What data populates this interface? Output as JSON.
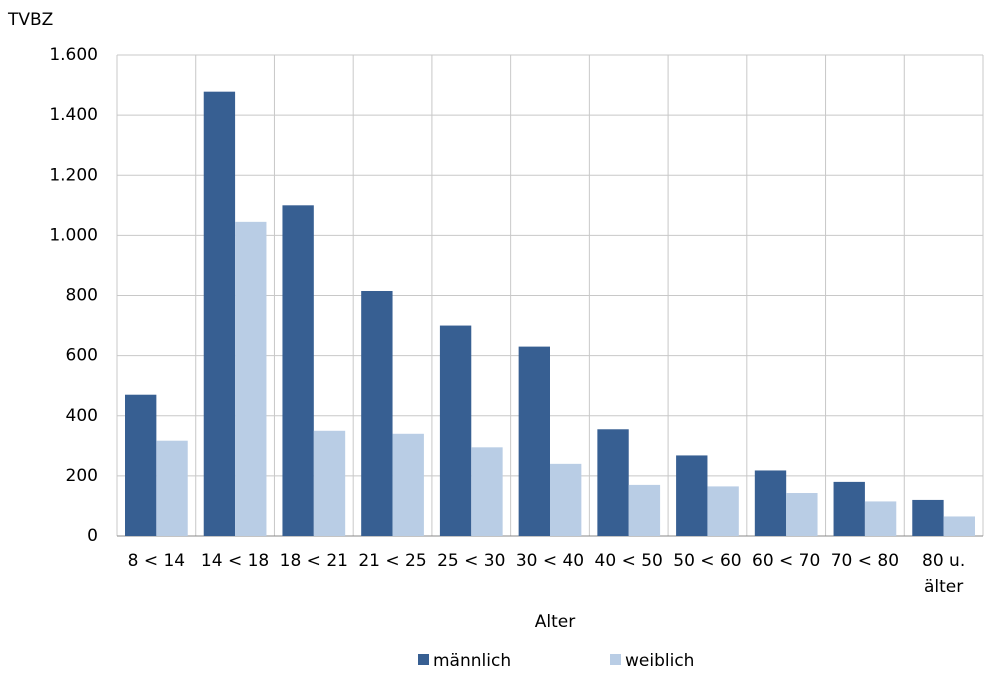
{
  "chart_data": {
    "type": "bar",
    "y_label": "TVBZ",
    "x_label": "Alter",
    "categories": [
      "8 < 14",
      "14 < 18",
      "18 < 21",
      "21 < 25",
      "25 < 30",
      "30 < 40",
      "40 < 50",
      "50 < 60",
      "60 < 70",
      "70 < 80",
      "80 u. älter"
    ],
    "series": [
      {
        "name": "männlich",
        "color": "#375f92",
        "values": [
          470,
          1478,
          1100,
          815,
          700,
          630,
          355,
          268,
          218,
          180,
          120
        ]
      },
      {
        "name": "weiblich",
        "color": "#b9cde5",
        "values": [
          317,
          1045,
          350,
          340,
          295,
          240,
          170,
          165,
          143,
          115,
          65
        ]
      }
    ],
    "ylim": [
      0,
      1600
    ],
    "yticks": [
      0,
      200,
      400,
      600,
      800,
      {
        "value": 1000,
        "label": "1.000"
      },
      {
        "value": 1200,
        "label": "1.200"
      },
      {
        "value": 1400,
        "label": "1.400"
      },
      {
        "value": 1600,
        "label": "1.600"
      }
    ],
    "grid": true,
    "legend": "bottom"
  }
}
